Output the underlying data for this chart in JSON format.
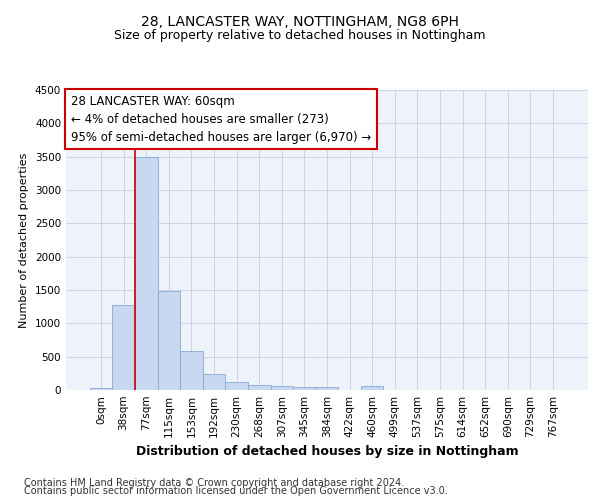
{
  "title1": "28, LANCASTER WAY, NOTTINGHAM, NG8 6PH",
  "title2": "Size of property relative to detached houses in Nottingham",
  "xlabel": "Distribution of detached houses by size in Nottingham",
  "ylabel": "Number of detached properties",
  "bin_labels": [
    "0sqm",
    "38sqm",
    "77sqm",
    "115sqm",
    "153sqm",
    "192sqm",
    "230sqm",
    "268sqm",
    "307sqm",
    "345sqm",
    "384sqm",
    "422sqm",
    "460sqm",
    "499sqm",
    "537sqm",
    "575sqm",
    "614sqm",
    "652sqm",
    "690sqm",
    "729sqm",
    "767sqm"
  ],
  "bar_values": [
    30,
    1270,
    3500,
    1480,
    580,
    240,
    125,
    80,
    55,
    40,
    40,
    0,
    55,
    0,
    0,
    0,
    0,
    0,
    0,
    0,
    0
  ],
  "bar_color": "#c8d8f0",
  "bar_edge_color": "#88aad0",
  "vline_color": "#cc0000",
  "vline_x": 1.5,
  "annotation_line1": "28 LANCASTER WAY: 60sqm",
  "annotation_line2": "← 4% of detached houses are smaller (273)",
  "annotation_line3": "95% of semi-detached houses are larger (6,970) →",
  "annotation_box_facecolor": "#ffffff",
  "annotation_box_edgecolor": "#cc0000",
  "ylim": [
    0,
    4500
  ],
  "yticks": [
    0,
    500,
    1000,
    1500,
    2000,
    2500,
    3000,
    3500,
    4000,
    4500
  ],
  "bg_color": "#eef2fb",
  "grid_color": "#c8cfe0",
  "footer_line1": "Contains HM Land Registry data © Crown copyright and database right 2024.",
  "footer_line2": "Contains public sector information licensed under the Open Government Licence v3.0.",
  "title1_fontsize": 10,
  "title2_fontsize": 9,
  "ylabel_fontsize": 8,
  "xlabel_fontsize": 9,
  "tick_fontsize": 7.5,
  "annotation_fontsize": 8.5,
  "footer_fontsize": 7
}
